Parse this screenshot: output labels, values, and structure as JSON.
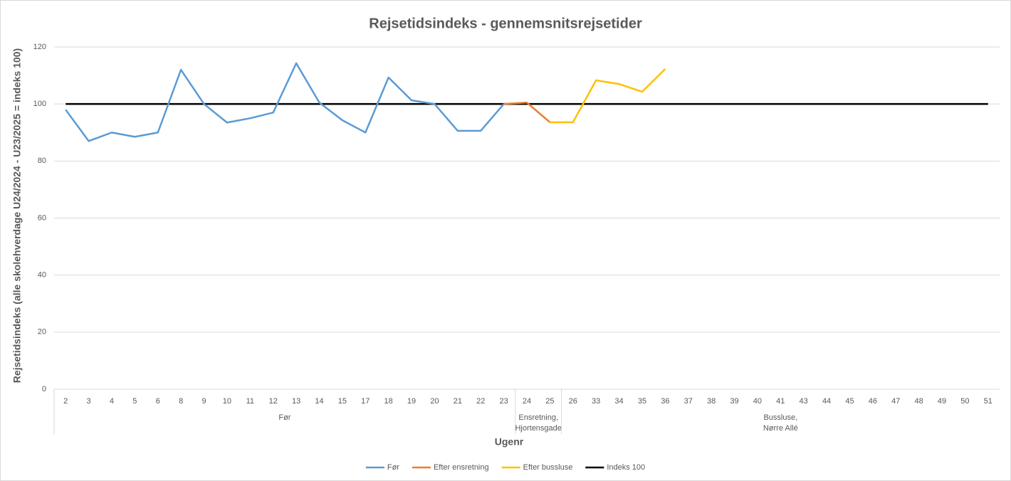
{
  "chart_data": {
    "type": "line",
    "title": "Rejsetidsindeks - gennemsnitsrejsetider",
    "x_label": "Ugenr",
    "y_label": "Rejsetidsindeks (alle skolehverdage U24/2024 - U23/2025 = indeks 100)",
    "categories": [
      "2",
      "3",
      "4",
      "5",
      "6",
      "8",
      "9",
      "10",
      "11",
      "12",
      "13",
      "14",
      "15",
      "17",
      "18",
      "19",
      "20",
      "21",
      "22",
      "23",
      "24",
      "25",
      "26",
      "33",
      "34",
      "35",
      "36",
      "37",
      "38",
      "39",
      "40",
      "41",
      "43",
      "44",
      "45",
      "46",
      "47",
      "48",
      "49",
      "50",
      "51"
    ],
    "groups": [
      {
        "label": [
          "Før"
        ],
        "span": 20
      },
      {
        "label": [
          "Ensretning,",
          "Hjortensgade"
        ],
        "span": 2
      },
      {
        "label": [
          "Bussluse,",
          "Nørre Allé"
        ],
        "span": 19
      }
    ],
    "ylim": [
      0,
      120
    ],
    "yticks": [
      0,
      20,
      40,
      60,
      80,
      100,
      120
    ],
    "grid": true,
    "legend": "bottom",
    "series": [
      {
        "name": "Før",
        "color": "#5b9bd5",
        "values": [
          98,
          87,
          90,
          88.5,
          90,
          112,
          100,
          93.5,
          95,
          97,
          114.3,
          100.5,
          94.3,
          90,
          109.3,
          101.3,
          100,
          90.6,
          90.6,
          100,
          null,
          null,
          null,
          null,
          null,
          null,
          null,
          null,
          null,
          null,
          null,
          null,
          null,
          null,
          null,
          null,
          null,
          null,
          null,
          null,
          null
        ]
      },
      {
        "name": "Efter ensretning",
        "color": "#ed7d31",
        "values": [
          null,
          null,
          null,
          null,
          null,
          null,
          null,
          null,
          null,
          null,
          null,
          null,
          null,
          null,
          null,
          null,
          null,
          null,
          null,
          100,
          100.5,
          93.6,
          null,
          null,
          null,
          null,
          null,
          null,
          null,
          null,
          null,
          null,
          null,
          null,
          null,
          null,
          null,
          null,
          null,
          null,
          null
        ]
      },
      {
        "name": "Efter bussluse",
        "color": "#ffc000",
        "values": [
          null,
          null,
          null,
          null,
          null,
          null,
          null,
          null,
          null,
          null,
          null,
          null,
          null,
          null,
          null,
          null,
          null,
          null,
          null,
          null,
          null,
          93.6,
          93.6,
          108.3,
          107,
          104.3,
          112.3,
          null,
          null,
          null,
          null,
          null,
          null,
          null,
          null,
          null,
          null,
          null,
          null,
          null,
          null
        ]
      },
      {
        "name": "Indeks 100",
        "color": "#000000",
        "values": [
          100,
          100,
          100,
          100,
          100,
          100,
          100,
          100,
          100,
          100,
          100,
          100,
          100,
          100,
          100,
          100,
          100,
          100,
          100,
          100,
          100,
          100,
          100,
          100,
          100,
          100,
          100,
          100,
          100,
          100,
          100,
          100,
          100,
          100,
          100,
          100,
          100,
          100,
          100,
          100,
          100
        ]
      }
    ]
  }
}
